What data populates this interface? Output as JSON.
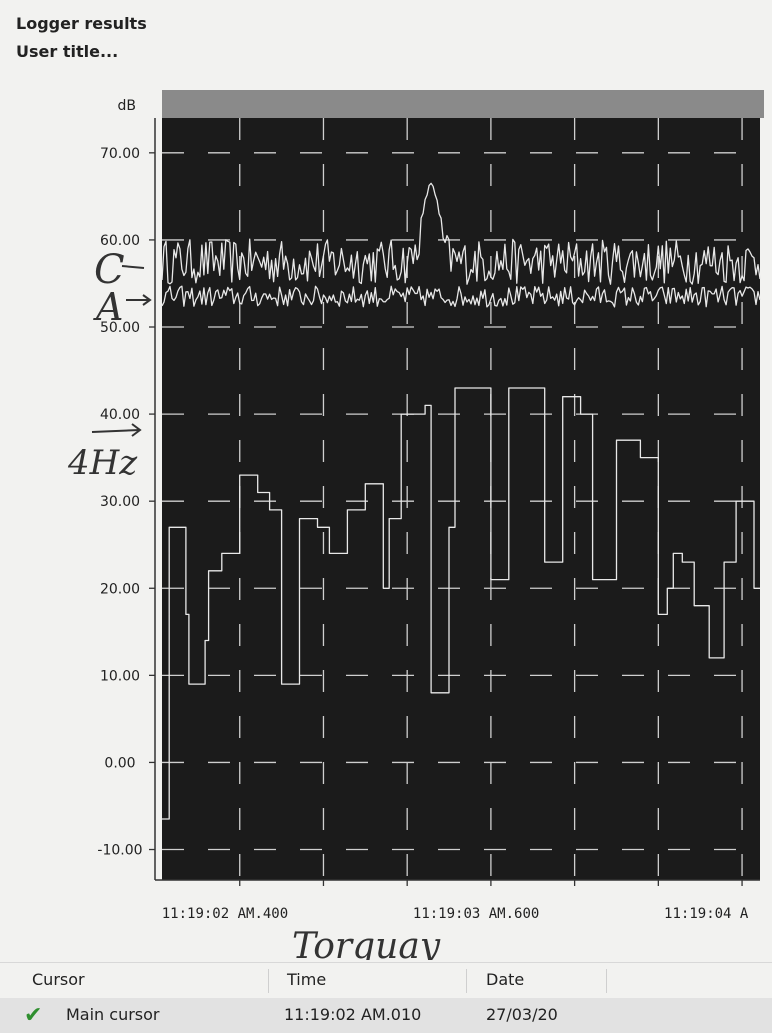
{
  "header": {
    "title": "Logger results",
    "subtitle": "User title..."
  },
  "annotations": {
    "c_label": "C",
    "a_label": "A",
    "hz_label": "4Hz",
    "location": "Torquay"
  },
  "chart_data": {
    "type": "line",
    "ylabel": "dB",
    "ylim": [
      -13.5,
      74
    ],
    "yticks": [
      "70.00",
      "60.00",
      "50.00",
      "40.00",
      "30.00",
      "20.00",
      "10.00",
      "0.00",
      "-10.00"
    ],
    "xticks": [
      "11:19:02 AM.400",
      "11:19:03 AM.600",
      "11:19:04 A"
    ],
    "grid": true,
    "background": "#1b1b1b",
    "line_color": "#e8e8e8",
    "series": [
      {
        "name": "C",
        "type": "noise",
        "base": 57.5,
        "amplitude": 2.6,
        "peak": {
          "t": 0.45,
          "value": 66.5,
          "width": 0.018
        }
      },
      {
        "name": "A",
        "type": "noise",
        "base": 53.5,
        "amplitude": 1.2
      },
      {
        "name": "4Hz",
        "type": "step",
        "points": [
          [
            0.0,
            -6.5
          ],
          [
            0.012,
            27
          ],
          [
            0.04,
            17
          ],
          [
            0.045,
            9
          ],
          [
            0.07,
            9
          ],
          [
            0.072,
            14
          ],
          [
            0.078,
            22
          ],
          [
            0.1,
            24
          ],
          [
            0.13,
            33
          ],
          [
            0.16,
            31
          ],
          [
            0.18,
            29
          ],
          [
            0.2,
            9
          ],
          [
            0.23,
            17
          ],
          [
            0.23,
            28
          ],
          [
            0.26,
            27
          ],
          [
            0.28,
            24
          ],
          [
            0.31,
            29
          ],
          [
            0.34,
            32
          ],
          [
            0.37,
            20
          ],
          [
            0.38,
            28
          ],
          [
            0.4,
            40
          ],
          [
            0.44,
            41
          ],
          [
            0.45,
            8
          ],
          [
            0.48,
            27
          ],
          [
            0.49,
            43
          ],
          [
            0.55,
            21
          ],
          [
            0.58,
            43
          ],
          [
            0.64,
            23
          ],
          [
            0.67,
            42
          ],
          [
            0.7,
            40
          ],
          [
            0.72,
            21
          ],
          [
            0.76,
            37
          ],
          [
            0.8,
            35
          ],
          [
            0.83,
            17
          ],
          [
            0.845,
            20
          ],
          [
            0.855,
            24
          ],
          [
            0.87,
            23
          ],
          [
            0.89,
            18
          ],
          [
            0.915,
            12
          ],
          [
            0.94,
            23
          ],
          [
            0.96,
            30
          ],
          [
            0.99,
            20
          ],
          [
            1.0,
            20
          ]
        ]
      }
    ]
  },
  "table": {
    "columns": [
      "Cursor",
      "Time",
      "Date"
    ],
    "rows": [
      {
        "cursor": "Main cursor",
        "time": "11:19:02 AM.010",
        "date": "27/03/20"
      }
    ]
  }
}
